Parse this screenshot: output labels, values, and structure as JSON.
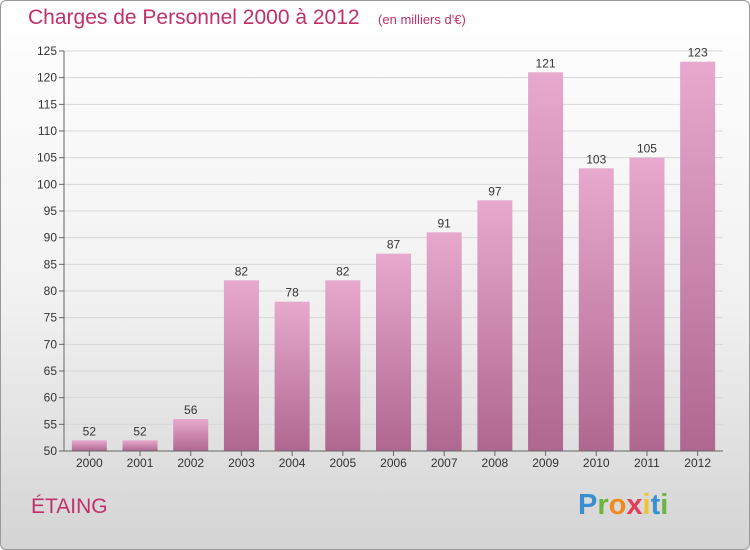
{
  "header": {
    "title": "Charges de Personnel 2000 à 2012",
    "subtitle": "(en milliers d'€)"
  },
  "commune": "ÉTAING",
  "logo": {
    "text": "Proxiti",
    "letters": [
      "P",
      "r",
      "o",
      "x",
      "i",
      "t",
      "i"
    ],
    "colors": [
      "#3a8fd0",
      "#6cb33f",
      "#f08a1d",
      "#e23e57",
      "#f2c12e",
      "#3a8fd0",
      "#6cb33f"
    ]
  },
  "chart_data": {
    "type": "bar",
    "categories": [
      "2000",
      "2001",
      "2002",
      "2003",
      "2004",
      "2005",
      "2006",
      "2007",
      "2008",
      "2009",
      "2010",
      "2011",
      "2012"
    ],
    "values": [
      52,
      52,
      56,
      82,
      78,
      82,
      87,
      91,
      97,
      121,
      103,
      105,
      123
    ],
    "title": "Charges de Personnel 2000 à 2012",
    "subtitle": "(en milliers d'€)",
    "xlabel": "",
    "ylabel": "",
    "ylim": [
      50,
      125
    ],
    "yticks": [
      50,
      55,
      60,
      65,
      70,
      75,
      80,
      85,
      90,
      95,
      100,
      105,
      110,
      115,
      120,
      125
    ],
    "grid": true,
    "bar_color": "#d98fb8",
    "data_labels": true
  }
}
